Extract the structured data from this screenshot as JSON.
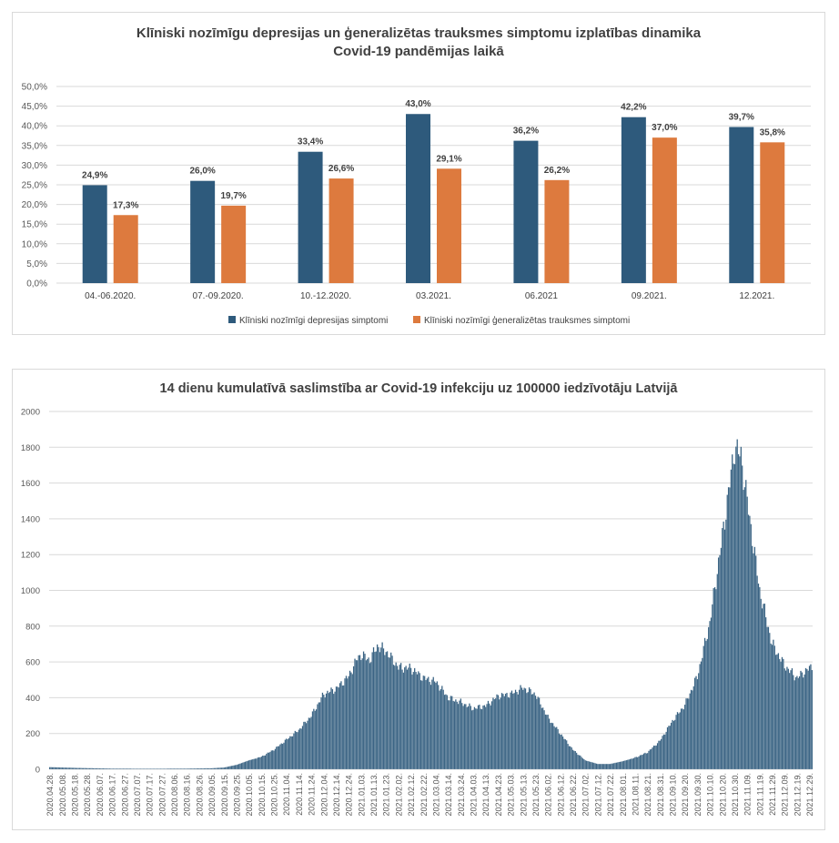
{
  "chart_data": [
    {
      "type": "bar",
      "title": "Klīniski nozīmīgu depresijas un ģeneralizētas trauksmes simptomu izplatības dinamika Covid-19 pandēmijas laikā",
      "categories": [
        "04.-06.2020.",
        "07.-09.2020.",
        "10.-12.2020.",
        "03.2021.",
        "06.2021",
        "09.2021.",
        "12.2021."
      ],
      "series": [
        {
          "name": "Klīniski nozīmīgi depresijas simptomi",
          "color": "#2e5a7c",
          "values": [
            24.9,
            26.0,
            33.4,
            43.0,
            36.2,
            42.2,
            39.7
          ],
          "labels": [
            "24,9%",
            "26,0%",
            "33,4%",
            "43,0%",
            "36,2%",
            "42,2%",
            "39,7%"
          ]
        },
        {
          "name": "Klīniski nozīmīgi ģeneralizētas trauksmes simptomi",
          "color": "#dd7a3e",
          "values": [
            17.3,
            19.7,
            26.6,
            29.1,
            26.2,
            37.0,
            35.8
          ],
          "labels": [
            "17,3%",
            "19,7%",
            "26,6%",
            "29,1%",
            "26,2%",
            "37,0%",
            "35,8%"
          ]
        }
      ],
      "ylim": [
        0,
        50
      ],
      "yticks": [
        "0,0%",
        "5,0%",
        "10,0%",
        "15,0%",
        "20,0%",
        "25,0%",
        "30,0%",
        "35,0%",
        "40,0%",
        "45,0%",
        "50,0%"
      ],
      "grid": true,
      "legend": "bottom"
    },
    {
      "type": "bar",
      "title": "14 dienu kumulatīvā saslimstība ar Covid-19 infekciju uz 100000 iedzīvotāju Latvijā",
      "color": "#2e5a7c",
      "ylim": [
        0,
        2000
      ],
      "yticks": [
        "0",
        "200",
        "400",
        "600",
        "800",
        "1000",
        "1200",
        "1400",
        "1600",
        "1800",
        "2000"
      ],
      "grid": true,
      "date_start": "2020.04.28",
      "date_end": "2021.12.31",
      "xticks": [
        "2020.04.28.",
        "2020.05.08.",
        "2020.05.18.",
        "2020.05.28.",
        "2020.06.07.",
        "2020.06.17.",
        "2020.06.27.",
        "2020.07.07.",
        "2020.07.17.",
        "2020.07.27.",
        "2020.08.06.",
        "2020.08.16.",
        "2020.08.26.",
        "2020.09.05.",
        "2020.09.15.",
        "2020.09.25.",
        "2020.10.05.",
        "2020.10.15.",
        "2020.10.25.",
        "2020.11.04.",
        "2020.11.14.",
        "2020.11.24.",
        "2020.12.04.",
        "2020.12.14.",
        "2020.12.24.",
        "2021.01.03.",
        "2021.01.13.",
        "2021.01.23.",
        "2021.02.02.",
        "2021.02.12.",
        "2021.02.22.",
        "2021.03.04.",
        "2021.03.14.",
        "2021.03.24.",
        "2021.04.03.",
        "2021.04.13.",
        "2021.04.23.",
        "2021.05.03.",
        "2021.05.13.",
        "2021.05.23.",
        "2021.06.02.",
        "2021.06.12.",
        "2021.06.22.",
        "2021.07.02.",
        "2021.07.12.",
        "2021.07.22.",
        "2021.08.01.",
        "2021.08.11.",
        "2021.08.21.",
        "2021.08.31.",
        "2021.09.10.",
        "2021.09.20.",
        "2021.09.30.",
        "2021.10.10.",
        "2021.10.20.",
        "2021.10.30.",
        "2021.11.09.",
        "2021.11.19.",
        "2021.11.29.",
        "2021.12.09.",
        "2021.12.19.",
        "2021.12.29."
      ],
      "series": [
        {
          "values_description_points": [
            [
              "2020.04.28",
              12
            ],
            [
              "2020.05.18",
              8
            ],
            [
              "2020.06.17",
              4
            ],
            [
              "2020.07.17",
              3
            ],
            [
              "2020.08.16",
              4
            ],
            [
              "2020.09.05",
              6
            ],
            [
              "2020.09.15",
              10
            ],
            [
              "2020.09.25",
              25
            ],
            [
              "2020.10.05",
              50
            ],
            [
              "2020.10.15",
              70
            ],
            [
              "2020.10.25",
              110
            ],
            [
              "2020.11.04",
              165
            ],
            [
              "2020.11.14",
              220
            ],
            [
              "2020.11.24",
              300
            ],
            [
              "2020.12.04",
              420
            ],
            [
              "2020.12.14",
              450
            ],
            [
              "2020.12.24",
              520
            ],
            [
              "2020.12.31",
              620
            ],
            [
              "2021.01.03",
              640
            ],
            [
              "2021.01.10",
              610
            ],
            [
              "2021.01.16",
              690
            ],
            [
              "2021.01.23",
              660
            ],
            [
              "2021.02.02",
              570
            ],
            [
              "2021.02.12",
              565
            ],
            [
              "2021.02.22",
              510
            ],
            [
              "2021.03.04",
              490
            ],
            [
              "2021.03.14",
              400
            ],
            [
              "2021.03.24",
              375
            ],
            [
              "2021.04.03",
              340
            ],
            [
              "2021.04.13",
              355
            ],
            [
              "2021.04.23",
              410
            ],
            [
              "2021.05.03",
              420
            ],
            [
              "2021.05.13",
              455
            ],
            [
              "2021.05.23",
              420
            ],
            [
              "2021.06.02",
              290
            ],
            [
              "2021.06.12",
              200
            ],
            [
              "2021.06.22",
              110
            ],
            [
              "2021.07.02",
              50
            ],
            [
              "2021.07.12",
              30
            ],
            [
              "2021.07.22",
              30
            ],
            [
              "2021.08.01",
              45
            ],
            [
              "2021.08.11",
              65
            ],
            [
              "2021.08.21",
              95
            ],
            [
              "2021.08.31",
              160
            ],
            [
              "2021.09.10",
              270
            ],
            [
              "2021.09.20",
              360
            ],
            [
              "2021.09.30",
              520
            ],
            [
              "2021.10.10",
              820
            ],
            [
              "2021.10.20",
              1300
            ],
            [
              "2021.10.30",
              1800
            ],
            [
              "2021.11.04",
              1750
            ],
            [
              "2021.11.09",
              1500
            ],
            [
              "2021.11.19",
              1000
            ],
            [
              "2021.11.29",
              700
            ],
            [
              "2021.12.09",
              580
            ],
            [
              "2021.12.19",
              510
            ],
            [
              "2021.12.24",
              540
            ],
            [
              "2021.12.31",
              575
            ]
          ]
        }
      ]
    }
  ]
}
